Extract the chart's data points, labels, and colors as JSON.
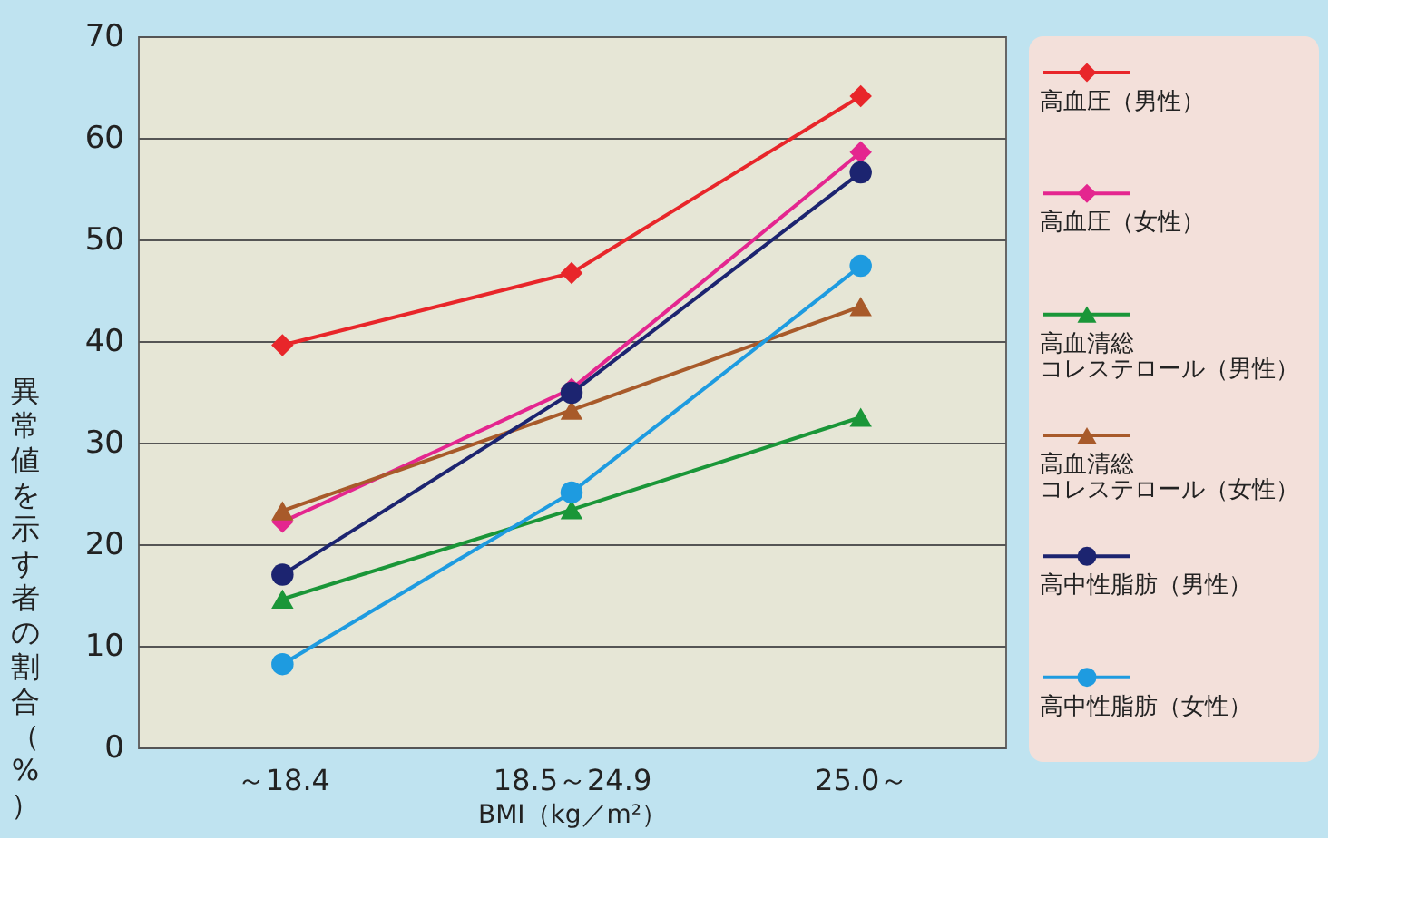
{
  "chart_data": {
    "type": "line",
    "xlabel": "BMI（kg／m²）",
    "ylabel": "異常値を示す者の割合（%）",
    "categories": [
      "～18.4",
      "18.5～24.9",
      "25.0～"
    ],
    "series": [
      {
        "name": "高血圧（男性）",
        "color": "#e8262a",
        "marker": "diamond",
        "values": [
          39.6,
          46.7,
          64.1
        ]
      },
      {
        "name": "高血圧（女性）",
        "color": "#e4268f",
        "marker": "diamond",
        "values": [
          22.2,
          35.3,
          58.6
        ]
      },
      {
        "name": "高血清総コレステロール（男性）",
        "color": "#1a9638",
        "marker": "triangle",
        "values": [
          14.6,
          23.4,
          32.5
        ]
      },
      {
        "name": "高血清総コレステロール（女性）",
        "color": "#a85a2a",
        "marker": "triangle",
        "values": [
          23.3,
          33.2,
          43.4
        ]
      },
      {
        "name": "高中性脂肪（男性）",
        "color": "#1c2470",
        "marker": "circle",
        "values": [
          17.0,
          34.9,
          56.6
        ]
      },
      {
        "name": "高中性脂肪（女性）",
        "color": "#1e9be0",
        "marker": "circle",
        "values": [
          8.2,
          25.1,
          47.4
        ]
      }
    ],
    "ylim": [
      0,
      70
    ],
    "yticks": [
      0,
      10,
      20,
      30,
      40,
      50,
      60,
      70
    ],
    "grid": "y",
    "legend": "right",
    "line_style": "solid"
  }
}
